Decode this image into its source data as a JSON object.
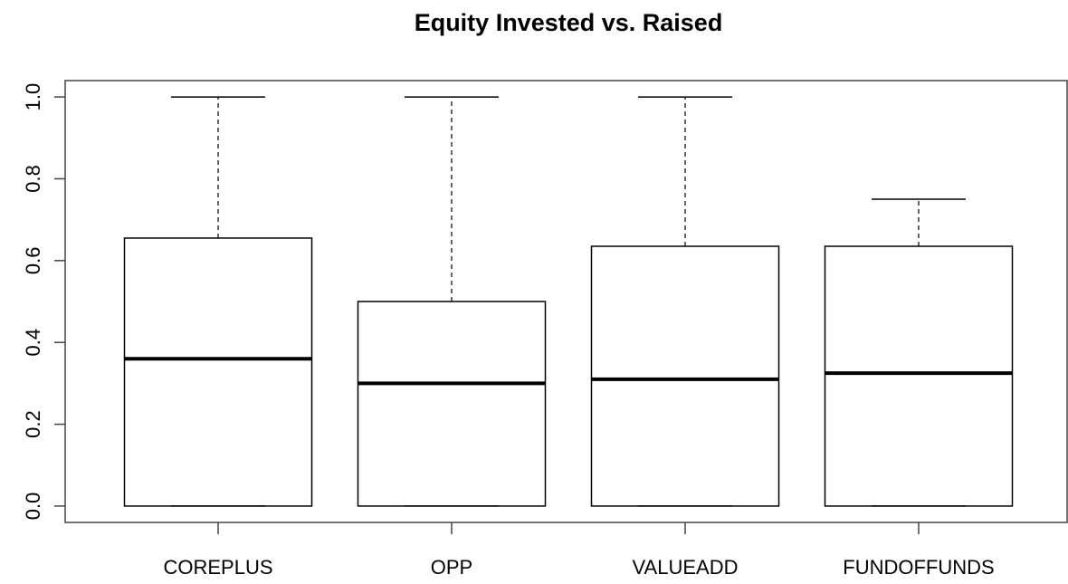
{
  "chart_data": {
    "type": "box",
    "title": "Equity Invested vs. Raised",
    "categories": [
      "COREPLUS",
      "OPP",
      "VALUEADD",
      "FUNDOFFUNDS"
    ],
    "min": [
      0,
      0,
      0,
      0
    ],
    "q1": [
      0,
      0,
      0,
      0
    ],
    "median": [
      0.36,
      0.3,
      0.31,
      0.325
    ],
    "q3": [
      0.655,
      0.5,
      0.635,
      0.635
    ],
    "max": [
      1.0,
      1.0,
      1.0,
      0.75
    ],
    "color": "#000000",
    "ylim": [
      -0.04,
      1.04
    ],
    "yticks": [
      {
        "value": 0,
        "label": "0.0"
      },
      0.2,
      0.4,
      0.6,
      0.8,
      {
        "value": 1,
        "label": "1.0"
      }
    ]
  }
}
